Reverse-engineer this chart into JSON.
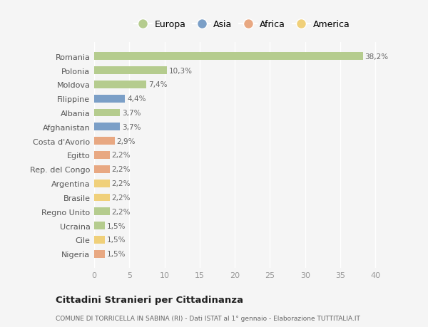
{
  "countries": [
    "Romania",
    "Polonia",
    "Moldova",
    "Filippine",
    "Albania",
    "Afghanistan",
    "Costa d'Avorio",
    "Egitto",
    "Rep. del Congo",
    "Argentina",
    "Brasile",
    "Regno Unito",
    "Ucraina",
    "Cile",
    "Nigeria"
  ],
  "values": [
    38.2,
    10.3,
    7.4,
    4.4,
    3.7,
    3.7,
    2.9,
    2.2,
    2.2,
    2.2,
    2.2,
    2.2,
    1.5,
    1.5,
    1.5
  ],
  "labels": [
    "38,2%",
    "10,3%",
    "7,4%",
    "4,4%",
    "3,7%",
    "3,7%",
    "2,9%",
    "2,2%",
    "2,2%",
    "2,2%",
    "2,2%",
    "2,2%",
    "1,5%",
    "1,5%",
    "1,5%"
  ],
  "continents": [
    "Europa",
    "Europa",
    "Europa",
    "Asia",
    "Europa",
    "Asia",
    "Africa",
    "Africa",
    "Africa",
    "America",
    "America",
    "Europa",
    "Europa",
    "America",
    "Africa"
  ],
  "colors": {
    "Europa": "#b5cc8e",
    "Asia": "#7b9fc7",
    "Africa": "#e8a882",
    "America": "#f0d07a"
  },
  "legend_order": [
    "Europa",
    "Asia",
    "Africa",
    "America"
  ],
  "title": "Cittadini Stranieri per Cittadinanza",
  "subtitle": "COMUNE DI TORRICELLA IN SABINA (RI) - Dati ISTAT al 1° gennaio - Elaborazione TUTTITALIA.IT",
  "xlim": [
    0,
    42
  ],
  "xticks": [
    0,
    5,
    10,
    15,
    20,
    25,
    30,
    35,
    40
  ],
  "bg_color": "#f5f5f5",
  "plot_bg_color": "#f5f5f5",
  "grid_color": "#ffffff",
  "bar_height": 0.55
}
